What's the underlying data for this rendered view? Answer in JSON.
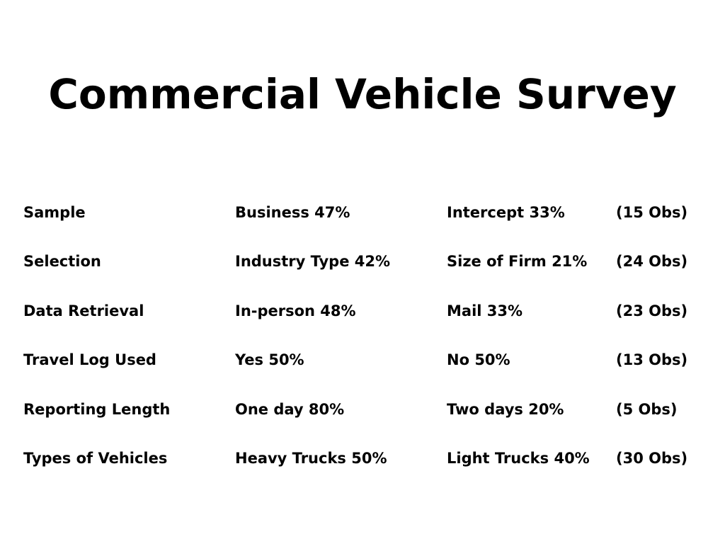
{
  "title": "Commercial Vehicle Survey",
  "rows": [
    {
      "label": "Sample",
      "option1": "Business 47%",
      "option2": "Intercept 33%",
      "obs": "(15 Obs)"
    },
    {
      "label": "Selection",
      "option1": "Industry Type 42%",
      "option2": "Size of Firm 21%",
      "obs": "(24 Obs)"
    },
    {
      "label": "Data Retrieval",
      "option1": "In-person 48%",
      "option2": "Mail 33%",
      "obs": "(23 Obs)"
    },
    {
      "label": "Travel Log Used",
      "option1": "Yes 50%",
      "option2": "No 50%",
      "obs": "(13 Obs)"
    },
    {
      "label": "Reporting Length",
      "option1": "One day 80%",
      "option2": "Two days 20%",
      "obs": "(5 Obs)"
    },
    {
      "label": "Types of Vehicles",
      "option1": "Heavy Trucks 50%",
      "option2": "Light Trucks 40%",
      "obs": "(30 Obs)"
    }
  ]
}
